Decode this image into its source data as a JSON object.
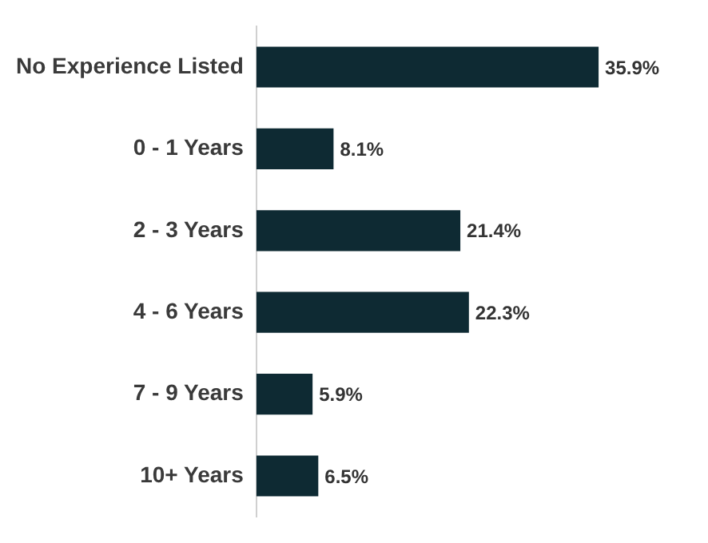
{
  "chart_data": {
    "type": "bar",
    "orientation": "horizontal",
    "categories": [
      "No Experience Listed",
      "0 - 1 Years",
      "2 - 3 Years",
      "4 - 6 Years",
      "7 - 9 Years",
      "10+ Years"
    ],
    "values": [
      35.9,
      8.1,
      21.4,
      22.3,
      5.9,
      6.5
    ],
    "value_labels": [
      "35.9%",
      "8.1%",
      "21.4%",
      "22.3%",
      "5.9%",
      "6.5%"
    ],
    "color": "#0e2a33",
    "legend": false
  }
}
